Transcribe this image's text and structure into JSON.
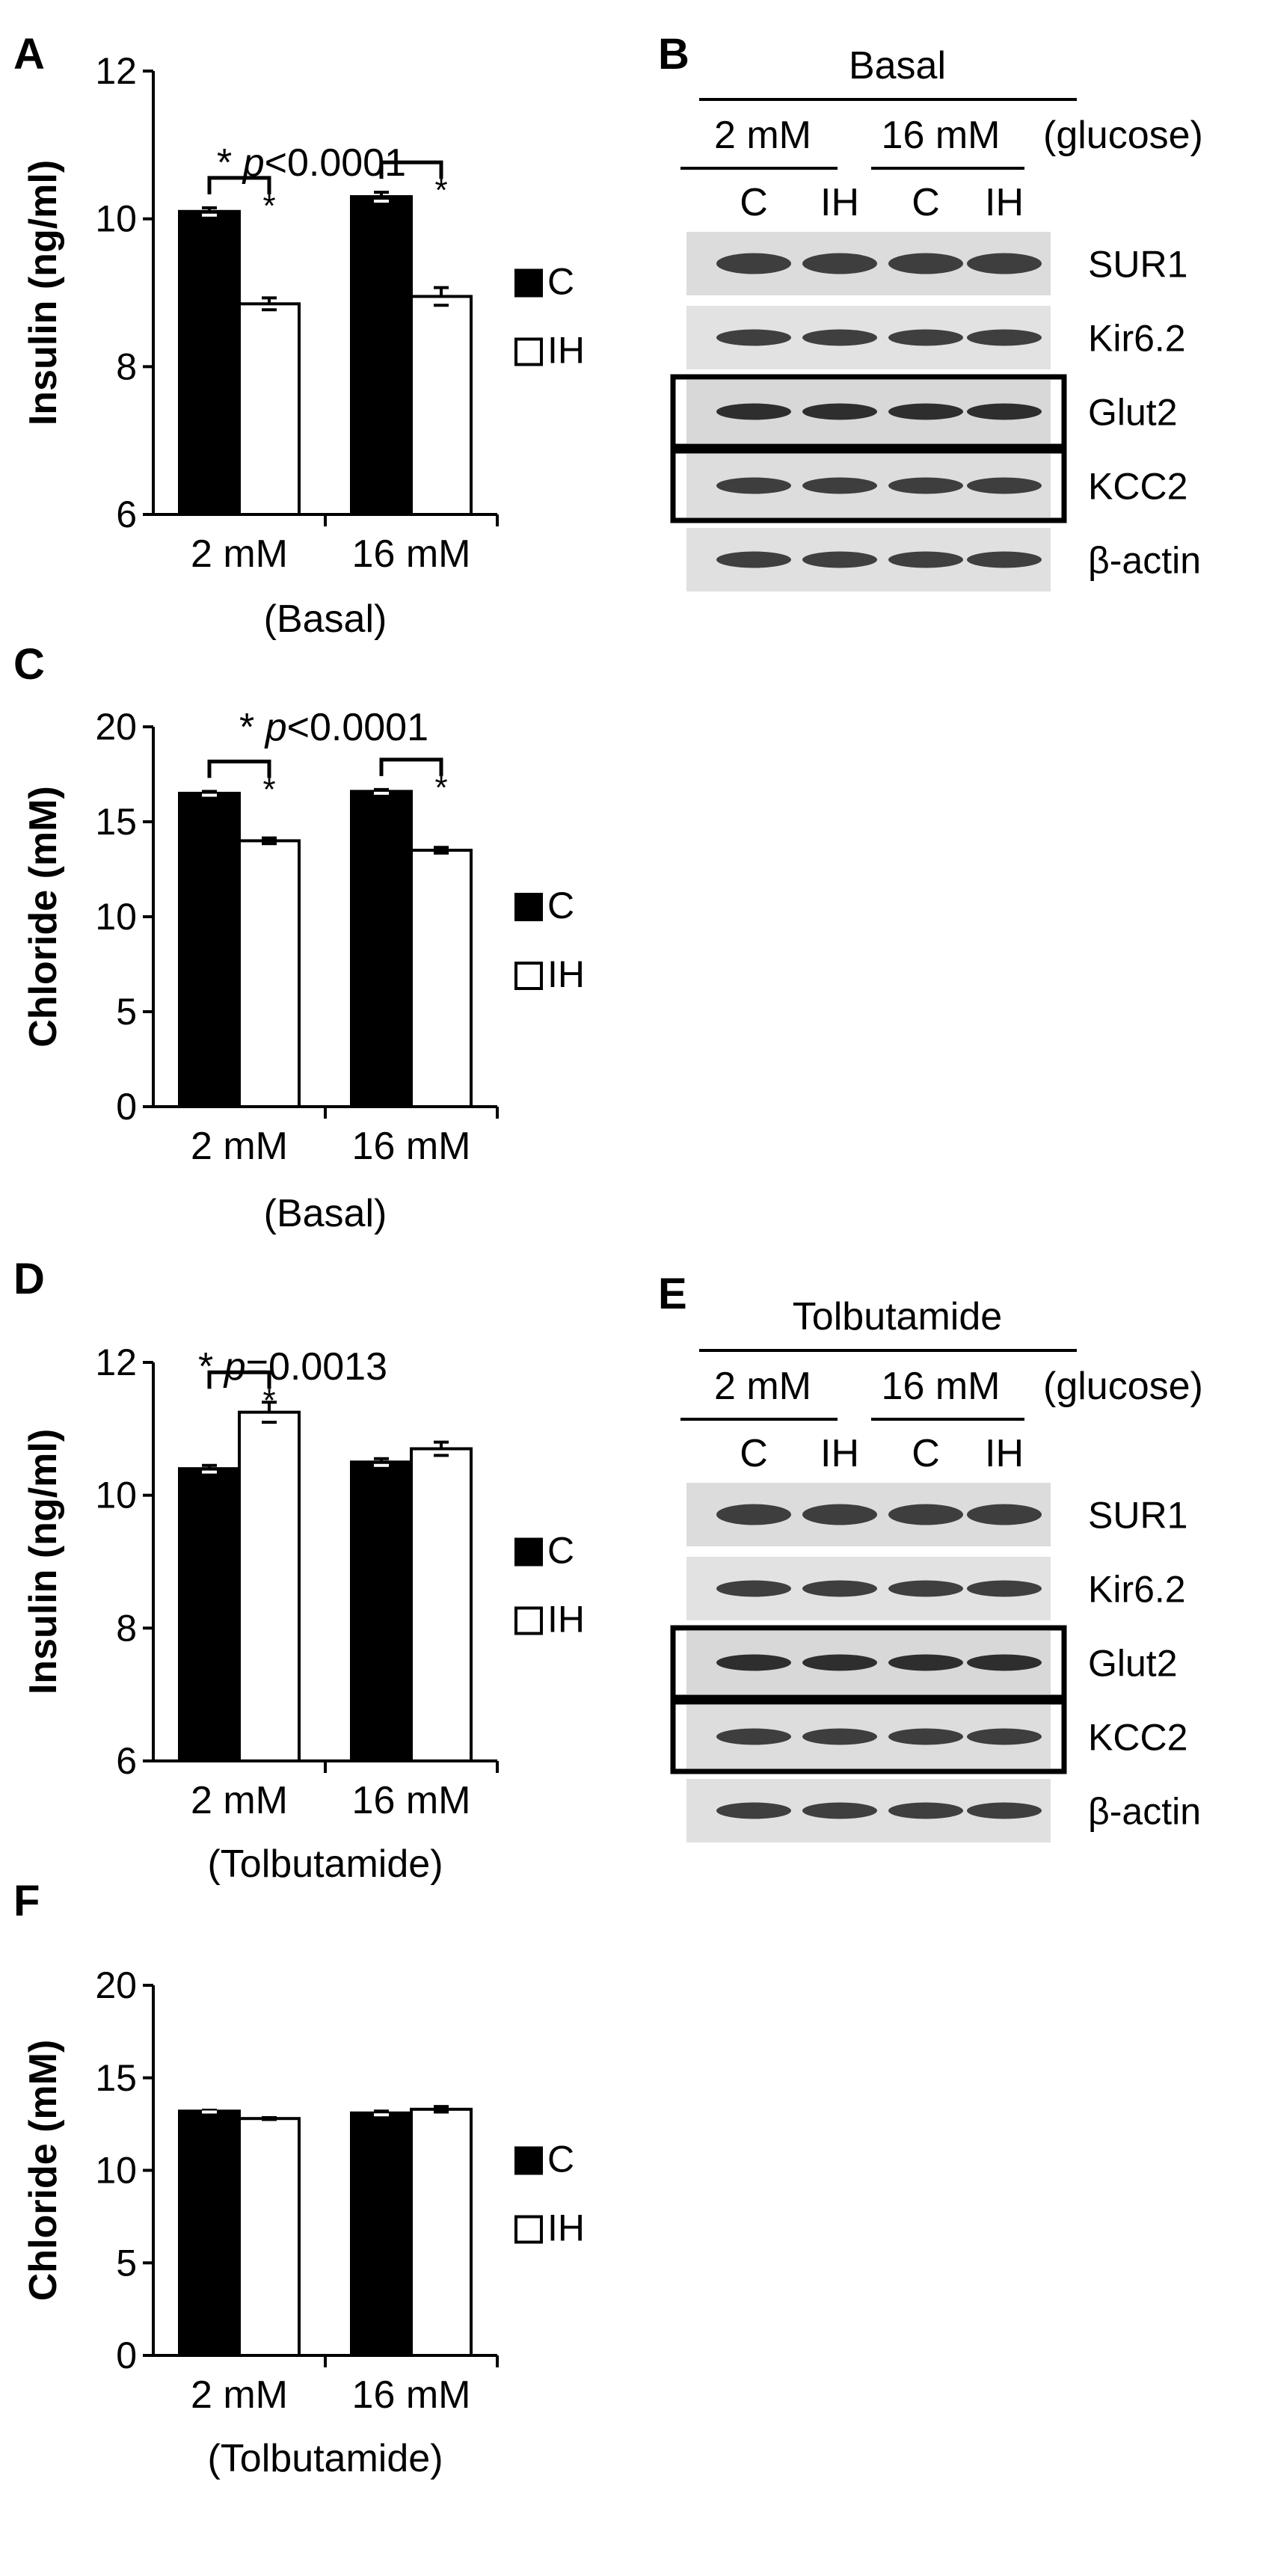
{
  "panels": {
    "A": {
      "letter": "A",
      "ylabel": "Insulin (ng/ml)",
      "pvalue_star": "*",
      "pvalue_p": "p",
      "pvalue_rest": "<0.0001",
      "legend": [
        "C",
        "IH"
      ],
      "groups": [
        "2 mM",
        "16 mM"
      ],
      "group_caption": "(Basal)"
    },
    "C": {
      "letter": "C",
      "ylabel": "Chloride (mM)",
      "pvalue_star": "*",
      "pvalue_p": "p",
      "pvalue_rest": "<0.0001",
      "legend": [
        "C",
        "IH"
      ],
      "groups": [
        "2 mM",
        "16 mM"
      ],
      "group_caption": "(Basal)"
    },
    "D": {
      "letter": "D",
      "ylabel": "Insulin (ng/ml)",
      "pvalue_star": "*",
      "pvalue_p": "p",
      "pvalue_rest": "=0.0013",
      "legend": [
        "C",
        "IH"
      ],
      "groups": [
        "2 mM",
        "16 mM"
      ],
      "group_caption": "(Tolbutamide)"
    },
    "F": {
      "letter": "F",
      "ylabel": "Chloride (mM)",
      "legend": [
        "C",
        "IH"
      ],
      "groups": [
        "2 mM",
        "16 mM"
      ],
      "group_caption": "(Tolbutamide)"
    }
  },
  "blots": {
    "B": {
      "letter": "B",
      "title": "Basal",
      "conc": [
        "2 mM",
        "16 mM"
      ],
      "conc_suffix": "(glucose)",
      "lanes": [
        "C",
        "IH",
        "C",
        "IH"
      ],
      "bands": [
        "SUR1",
        "Kir6.2",
        "Glut2",
        "KCC2",
        "β-actin"
      ],
      "boxed": [
        "Glut2",
        "KCC2"
      ]
    },
    "E": {
      "letter": "E",
      "title": "Tolbutamide",
      "conc": [
        "2 mM",
        "16 mM"
      ],
      "conc_suffix": "(glucose)",
      "lanes": [
        "C",
        "IH",
        "C",
        "IH"
      ],
      "bands": [
        "SUR1",
        "Kir6.2",
        "Glut2",
        "KCC2",
        "β-actin"
      ],
      "boxed": [
        "Glut2",
        "KCC2"
      ]
    }
  },
  "colors": {
    "control": "#000000",
    "ih": "#ffffff",
    "axis": "#000000"
  },
  "chart_data": [
    {
      "panel": "A",
      "type": "bar",
      "categories": [
        "2 mM",
        "16 mM"
      ],
      "series": [
        {
          "name": "C",
          "values": [
            10.1,
            10.3
          ],
          "errors": [
            0.05,
            0.06
          ]
        },
        {
          "name": "IH",
          "values": [
            8.85,
            8.95
          ],
          "errors": [
            0.08,
            0.12
          ]
        }
      ],
      "ylabel": "Insulin (ng/ml)",
      "xlabel": "(Basal)",
      "ylim": [
        6,
        12
      ],
      "yticks": [
        6,
        8,
        10,
        12
      ],
      "significance": [
        {
          "category": "2 mM",
          "marker": "*"
        },
        {
          "category": "16 mM",
          "marker": "*"
        }
      ],
      "annotation": "* p<0.0001",
      "legend": "right",
      "grid": false
    },
    {
      "panel": "C",
      "type": "bar",
      "categories": [
        "2 mM",
        "16 mM"
      ],
      "series": [
        {
          "name": "C",
          "values": [
            16.5,
            16.6
          ],
          "errors": [
            0.1,
            0.1
          ]
        },
        {
          "name": "IH",
          "values": [
            14.0,
            13.5
          ],
          "errors": [
            0.15,
            0.15
          ]
        }
      ],
      "ylabel": "Chloride (mM)",
      "xlabel": "(Basal)",
      "ylim": [
        0,
        20
      ],
      "yticks": [
        0,
        5,
        10,
        15,
        20
      ],
      "significance": [
        {
          "category": "2 mM",
          "marker": "*"
        },
        {
          "category": "16 mM",
          "marker": "*"
        }
      ],
      "annotation": "* p<0.0001",
      "legend": "right",
      "grid": false
    },
    {
      "panel": "D",
      "type": "bar",
      "categories": [
        "2 mM",
        "16 mM"
      ],
      "series": [
        {
          "name": "C",
          "values": [
            10.4,
            10.5
          ],
          "errors": [
            0.05,
            0.05
          ]
        },
        {
          "name": "IH",
          "values": [
            11.25,
            10.7
          ],
          "errors": [
            0.15,
            0.1
          ]
        }
      ],
      "ylabel": "Insulin (ng/ml)",
      "xlabel": "(Tolbutamide)",
      "ylim": [
        6,
        12
      ],
      "yticks": [
        6,
        8,
        10,
        12
      ],
      "significance": [
        {
          "category": "2 mM",
          "marker": "*"
        }
      ],
      "annotation": "* p=0.0013",
      "legend": "right",
      "grid": false
    },
    {
      "panel": "F",
      "type": "bar",
      "categories": [
        "2 mM",
        "16 mM"
      ],
      "series": [
        {
          "name": "C",
          "values": [
            13.2,
            13.1
          ],
          "errors": [
            0.05,
            0.1
          ]
        },
        {
          "name": "IH",
          "values": [
            12.8,
            13.3
          ],
          "errors": [
            0.05,
            0.15
          ]
        }
      ],
      "ylabel": "Chloride (mM)",
      "xlabel": "(Tolbutamide)",
      "ylim": [
        0,
        20
      ],
      "yticks": [
        0,
        5,
        10,
        15,
        20
      ],
      "significance": [],
      "annotation": "",
      "legend": "right",
      "grid": false
    }
  ]
}
